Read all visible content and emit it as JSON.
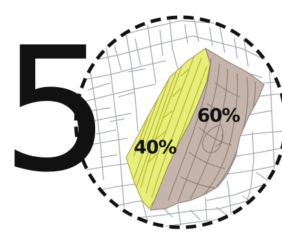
{
  "figure": {
    "number": "5",
    "zones": [
      {
        "label": "40%",
        "share": 40,
        "fill": "#e8ee7a",
        "contour": "#b7b82e"
      },
      {
        "label": "60%",
        "share": 60,
        "fill": "#c5b4ab",
        "contour": "#8f7f78"
      }
    ],
    "colors": {
      "background": "#ffffff",
      "street": "#a3a8ad",
      "boundary": "#111111",
      "number": "#111111"
    }
  }
}
